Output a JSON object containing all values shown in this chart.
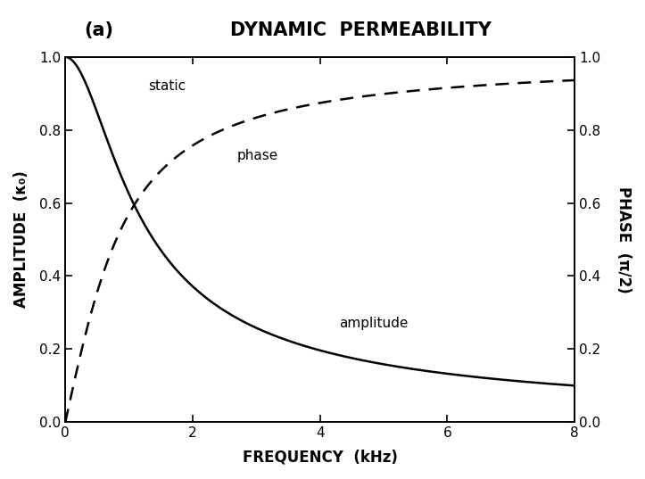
{
  "title": "DYNAMIC  PERMEABILITY",
  "label_a": "(a)",
  "xlabel": "FREQUENCY  (kHz)",
  "ylabel_left": "AMPLITUDE  (κ₀)",
  "ylabel_right": "PHASE  (π/2)",
  "xlim": [
    0,
    8
  ],
  "ylim": [
    0,
    1.0
  ],
  "xticks": [
    0,
    2,
    4,
    6,
    8
  ],
  "yticks_left": [
    0,
    0.2,
    0.4,
    0.6,
    0.8,
    1
  ],
  "yticks_right": [
    0,
    0.2,
    0.4,
    0.6,
    0.8,
    1
  ],
  "static_label": "static",
  "phase_label": "phase",
  "amplitude_label": "amplitude",
  "fc": 0.8,
  "background_color": "#ffffff",
  "line_color": "#000000",
  "title_fontsize": 15,
  "label_fontsize": 12,
  "tick_fontsize": 11
}
